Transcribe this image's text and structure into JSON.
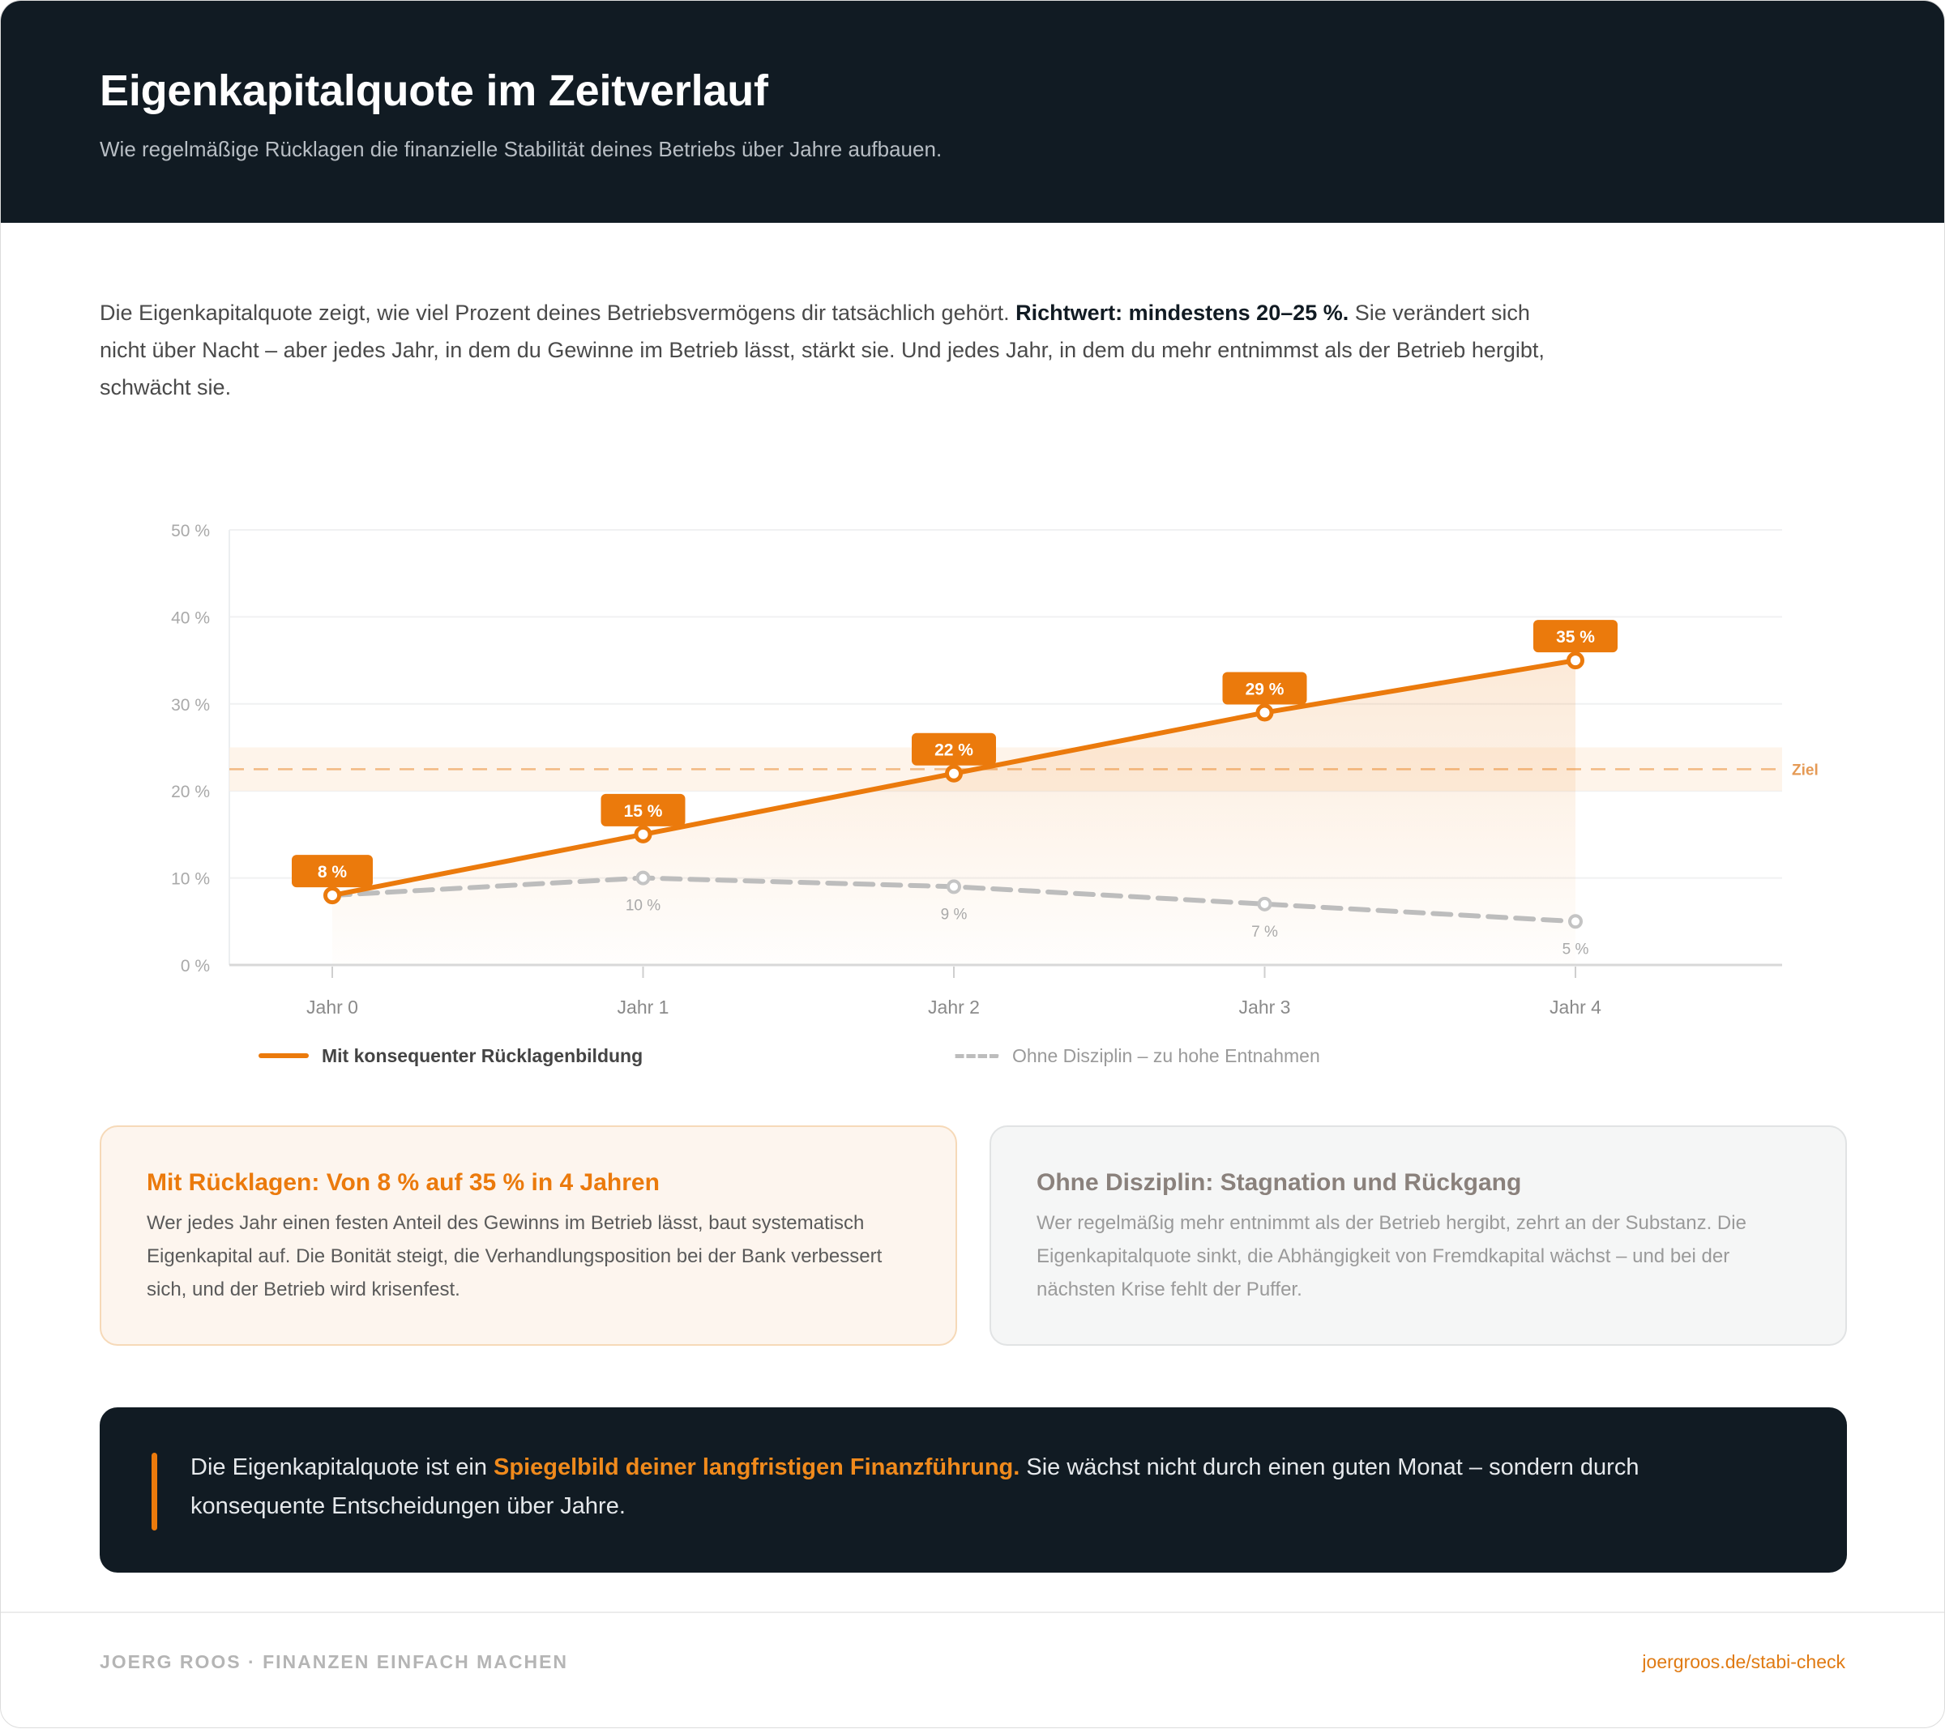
{
  "header": {
    "title": "Eigenkapitalquote im Zeitverlauf",
    "subtitle": "Wie regelmäßige Rücklagen die finanzielle Stabilität deines Betriebs über Jahre aufbauen."
  },
  "intro": {
    "text_before": "Die Eigenkapitalquote zeigt, wie viel Prozent deines Betriebsvermögens dir tatsächlich gehört. ",
    "bold": "Richtwert: mindestens 20–25 %.",
    "text_after": " Sie verändert sich nicht über Nacht – aber jedes Jahr, in dem du Gewinne im Betrieb lässt, stärkt sie. Und jedes Jahr, in dem du mehr entnimmst als der Betrieb hergibt, schwächt sie."
  },
  "colors": {
    "accent": "#eb7a0c",
    "dark": "#111b23",
    "gray_series": "#bdbdbd",
    "target_band": "#fdf0e3",
    "target_line": "#f2b982"
  },
  "chart_data": {
    "type": "line",
    "title": "",
    "xlabel": "",
    "ylabel": "",
    "categories": [
      "Jahr 0",
      "Jahr 1",
      "Jahr 2",
      "Jahr 3",
      "Jahr 4"
    ],
    "series": [
      {
        "name": "Mit konsequenter Rücklagenbildung",
        "values": [
          8,
          15,
          22,
          29,
          35
        ],
        "labels": [
          "8 %",
          "15 %",
          "22 %",
          "29 %",
          "35 %"
        ],
        "style": "solid",
        "color": "#eb7a0c",
        "fill": true
      },
      {
        "name": "Ohne Disziplin – zu hohe Entnahmen",
        "values": [
          8,
          10,
          9,
          7,
          5
        ],
        "labels": [
          "",
          "10 %",
          "9 %",
          "7 %",
          "5 %"
        ],
        "style": "dashed",
        "color": "#bdbdbd"
      }
    ],
    "ylim": [
      0,
      50
    ],
    "yticks": [
      0,
      10,
      20,
      30,
      40,
      50
    ],
    "ytick_labels": [
      "0 %",
      "10 %",
      "20 %",
      "30 %",
      "40 %",
      "50 %"
    ],
    "target_band": {
      "from": 20,
      "to": 25,
      "line": 22.5,
      "label": "Ziel"
    },
    "grid": true,
    "legend_position": "bottom"
  },
  "legend": {
    "item1": "Mit konsequenter Rücklagenbildung",
    "item2": "Ohne Disziplin – zu hohe Entnahmen"
  },
  "cards": {
    "positive": {
      "title": "Mit Rücklagen: Von 8 % auf 35 % in 4 Jahren",
      "text": "Wer jedes Jahr einen festen Anteil des Gewinns im Betrieb lässt, baut systematisch Eigenkapital auf. Die Bonität steigt, die Verhandlungsposition bei der Bank verbessert sich, und der Betrieb wird krisenfest."
    },
    "negative": {
      "title": "Ohne Disziplin: Stagnation und Rückgang",
      "text": "Wer regelmäßig mehr entnimmt als der Betrieb hergibt, zehrt an der Substanz. Die Eigenkapitalquote sinkt, die Abhängigkeit von Fremdkapital wächst – und bei der nächsten Krise fehlt der Puffer."
    }
  },
  "quote": {
    "before": "Die Eigenkapitalquote ist ein ",
    "highlight": "Spiegelbild deiner langfristigen Finanzführung.",
    "after": " Sie wächst nicht durch einen guten Monat – sondern durch konsequente Entscheidungen über Jahre."
  },
  "footer": {
    "brand": "JOERG ROOS · FINANZEN EINFACH MACHEN",
    "link": "joergroos.de/stabi-check"
  }
}
